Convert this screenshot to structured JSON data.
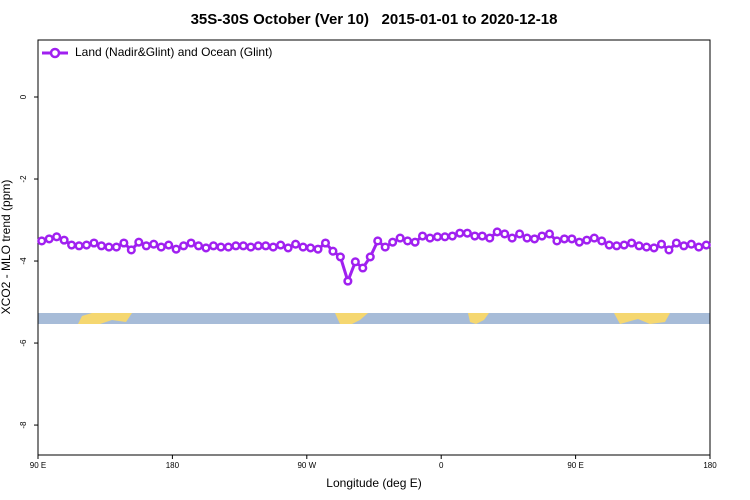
{
  "chart_data": {
    "type": "line",
    "title": "35S-30S October (Ver 10)   2015-01-01 to 2020-12-18",
    "x_label": "Longitude (deg E)",
    "y_label": "XCO2 - MLO trend (ppm)",
    "xlim": [
      90,
      540
    ],
    "xticks": [
      {
        "value": 90,
        "label": "90 E"
      },
      180,
      {
        "value": 270,
        "label": "90 W"
      },
      {
        "value": 360,
        "label": "0"
      },
      {
        "value": 450,
        "label": "90 E"
      },
      {
        "value": 540,
        "label": "180"
      }
    ],
    "ylim": [
      -8.73,
      1.39
    ],
    "yticks": [
      0,
      -2,
      -4,
      -6,
      -8
    ],
    "legend": "top-left",
    "x": [
      92.5,
      97.5,
      102.5,
      107.5,
      112.5,
      117.5,
      122.5,
      127.5,
      132.5,
      137.5,
      142.5,
      147.5,
      152.5,
      157.5,
      162.5,
      167.5,
      172.5,
      177.5,
      182.5,
      187.5,
      192.5,
      197.5,
      202.5,
      207.5,
      212.5,
      217.5,
      222.5,
      227.5,
      232.5,
      237.5,
      242.5,
      247.5,
      252.5,
      257.5,
      262.5,
      267.5,
      272.5,
      277.5,
      282.5,
      287.5,
      292.5,
      297.5,
      302.5,
      307.5,
      312.5,
      317.5,
      322.5,
      327.5,
      332.5,
      337.5,
      342.5,
      347.5,
      352.5,
      357.5,
      362.5,
      367.5,
      372.5,
      377.5,
      382.5,
      387.5,
      392.5,
      397.5,
      402.5,
      407.5,
      412.5,
      417.5,
      422.5,
      427.5,
      432.5,
      437.5,
      442.5,
      447.5,
      452.5,
      457.5,
      462.5,
      467.5,
      472.5,
      477.5,
      482.5,
      487.5,
      492.5,
      497.5,
      502.5,
      507.5,
      512.5,
      517.5,
      522.5,
      527.5,
      532.5,
      537.5
    ],
    "series": [
      {
        "name": "Land (Nadir&Glint) and Ocean (Glint)",
        "color": "#a020f0",
        "values": [
          -3.51,
          -3.46,
          -3.41,
          -3.49,
          -3.61,
          -3.63,
          -3.61,
          -3.56,
          -3.63,
          -3.66,
          -3.66,
          -3.56,
          -3.73,
          -3.54,
          -3.63,
          -3.59,
          -3.66,
          -3.61,
          -3.71,
          -3.63,
          -3.56,
          -3.63,
          -3.68,
          -3.63,
          -3.66,
          -3.66,
          -3.63,
          -3.63,
          -3.66,
          -3.63,
          -3.63,
          -3.66,
          -3.61,
          -3.68,
          -3.59,
          -3.66,
          -3.68,
          -3.71,
          -3.56,
          -3.76,
          -3.9,
          -4.49,
          -4.02,
          -4.17,
          -3.9,
          -3.51,
          -3.66,
          -3.54,
          -3.44,
          -3.51,
          -3.54,
          -3.39,
          -3.44,
          -3.41,
          -3.41,
          -3.39,
          -3.32,
          -3.32,
          -3.39,
          -3.39,
          -3.44,
          -3.29,
          -3.34,
          -3.44,
          -3.34,
          -3.44,
          -3.46,
          -3.39,
          -3.34,
          -3.51,
          -3.46,
          -3.46,
          -3.54,
          -3.49,
          -3.44,
          -3.51,
          -3.61,
          -3.63,
          -3.61,
          -3.56,
          -3.63,
          -3.66,
          -3.68,
          -3.59,
          -3.73,
          -3.56,
          -3.63,
          -3.59,
          -3.66,
          -3.61
        ]
      }
    ]
  }
}
